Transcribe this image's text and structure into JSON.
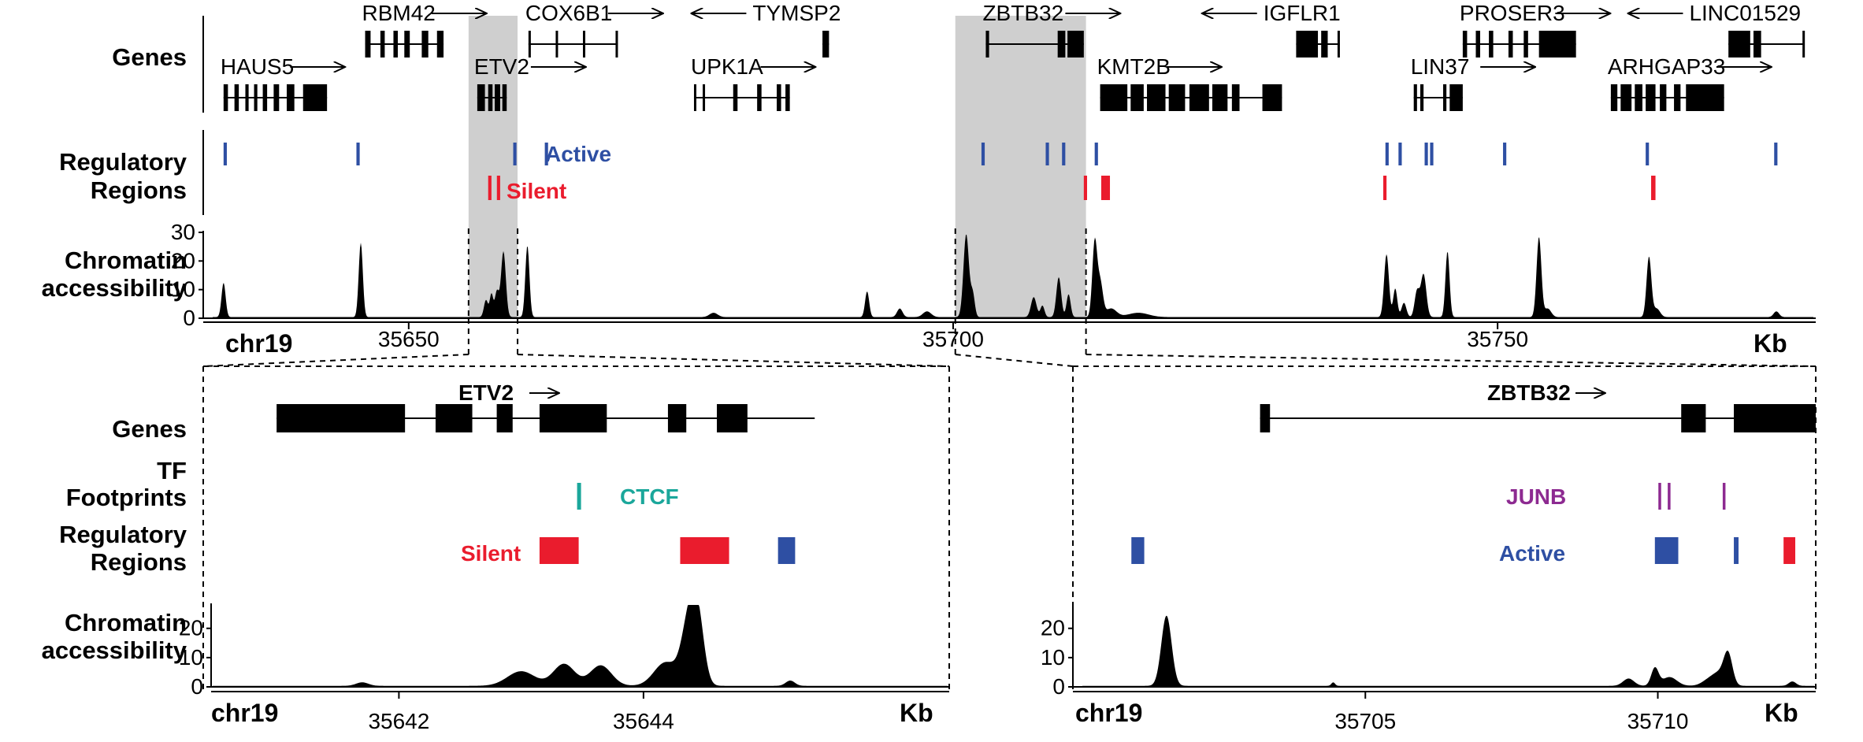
{
  "colors": {
    "active": "#2e4fa3",
    "silent": "#ea1c2d",
    "ctcf": "#1ba79b",
    "junb": "#8d2a91",
    "shade": "#cfcfcf",
    "black": "#000000"
  },
  "labels": {
    "genes": "Genes",
    "regulatory_1": "Regulatory",
    "regulatory_2": "Regions",
    "chromatin_1": "Chromatin",
    "chromatin_2": "accessibility",
    "tf_1": "TF",
    "tf_2": "Footprints",
    "chr": "chr19",
    "unit": "Kb",
    "active": "Active",
    "silent": "Silent",
    "ctcf": "CTCF",
    "junb": "JUNB"
  },
  "top": {
    "xrange_kb": [
      35632,
      35779
    ],
    "ticks": [
      {
        "kb": 35650,
        "label": "35650"
      },
      {
        "kb": 35700,
        "label": "35700"
      },
      {
        "kb": 35750,
        "label": "35750"
      }
    ],
    "yticks": [
      "0",
      "10",
      "20",
      "30"
    ],
    "ymax": 30,
    "shaded": [
      [
        35655.5,
        35660.0
      ],
      [
        35700.2,
        35712.2
      ]
    ],
    "genes": [
      {
        "name": "HAUS5",
        "row": 1,
        "start": 35633.0,
        "end": 35642.5,
        "exons": [
          [
            35633.0,
            35633.4
          ],
          [
            35634.0,
            35634.4
          ],
          [
            35635.0,
            35635.3
          ],
          [
            35635.8,
            35636.1
          ],
          [
            35636.6,
            35637.0
          ],
          [
            35637.6,
            35638.1
          ],
          [
            35638.8,
            35639.5
          ],
          [
            35640.3,
            35642.5
          ]
        ],
        "arrow": "right"
      },
      {
        "name": "RBM42",
        "row": 0,
        "start": 35646.0,
        "end": 35653.2,
        "exons": [
          [
            35646.0,
            35646.5
          ],
          [
            35647.4,
            35647.8
          ],
          [
            35648.6,
            35649.0
          ],
          [
            35649.6,
            35650.1
          ],
          [
            35651.2,
            35651.8
          ],
          [
            35652.6,
            35653.2
          ]
        ],
        "arrow": "right"
      },
      {
        "name": "ETV2",
        "row": 1,
        "start": 35656.3,
        "end": 35659.0,
        "exons": [
          [
            35656.3,
            35657.0
          ],
          [
            35657.3,
            35657.7
          ],
          [
            35657.9,
            35658.4
          ],
          [
            35658.6,
            35659.0
          ]
        ],
        "arrow": "right"
      },
      {
        "name": "COX6B1",
        "row": 0,
        "start": 35661.0,
        "end": 35669.2,
        "exons": [
          [
            35661.0,
            35661.2
          ],
          [
            35663.5,
            35663.7
          ],
          [
            35666.0,
            35666.2
          ],
          [
            35669.0,
            35669.2
          ]
        ],
        "arrow": "right"
      },
      {
        "name": "UPK1A",
        "row": 1,
        "start": 35676.2,
        "end": 35685.0,
        "exons": [
          [
            35676.2,
            35676.4
          ],
          [
            35677.0,
            35677.2
          ],
          [
            35679.8,
            35680.2
          ],
          [
            35682.0,
            35682.4
          ],
          [
            35683.8,
            35684.2
          ],
          [
            35684.6,
            35685.0
          ]
        ],
        "arrow": "right"
      },
      {
        "name": "TYMSP2",
        "row": 0,
        "start": 35688.0,
        "end": 35688.6,
        "exons": [
          [
            35688.0,
            35688.6
          ]
        ],
        "arrow": "left"
      },
      {
        "name": "ZBTB32",
        "row": 0,
        "start": 35703.0,
        "end": 35712.0,
        "exons": [
          [
            35703.0,
            35703.3
          ],
          [
            35709.6,
            35710.3
          ],
          [
            35710.5,
            35712.0
          ]
        ],
        "arrow": "right"
      },
      {
        "name": "KMT2B",
        "row": 1,
        "start": 35713.5,
        "end": 35730.2,
        "exons": [
          [
            35713.5,
            35716.0
          ],
          [
            35716.3,
            35717.5
          ],
          [
            35717.8,
            35719.5
          ],
          [
            35719.8,
            35721.3
          ],
          [
            35721.7,
            35723.5
          ],
          [
            35723.8,
            35725.2
          ],
          [
            35725.6,
            35726.3
          ],
          [
            35728.4,
            35730.2
          ]
        ],
        "arrow": "right"
      },
      {
        "name": "IGFLR1",
        "row": 0,
        "start": 35731.5,
        "end": 35735.5,
        "exons": [
          [
            35731.5,
            35733.5
          ],
          [
            35733.8,
            35734.4
          ],
          [
            35735.3,
            35735.5
          ]
        ],
        "arrow": "left"
      },
      {
        "name": "LIN37",
        "row": 1,
        "start": 35742.3,
        "end": 35746.8,
        "exons": [
          [
            35742.3,
            35742.6
          ],
          [
            35742.9,
            35743.2
          ],
          [
            35745.0,
            35745.3
          ],
          [
            35745.6,
            35746.8
          ]
        ],
        "arrow": "right"
      },
      {
        "name": "PROSER3",
        "row": 0,
        "start": 35746.8,
        "end": 35757.2,
        "exons": [
          [
            35746.8,
            35747.2
          ],
          [
            35748.0,
            35748.4
          ],
          [
            35749.2,
            35749.6
          ],
          [
            35751.0,
            35751.4
          ],
          [
            35752.4,
            35752.8
          ],
          [
            35753.8,
            35757.2
          ]
        ],
        "arrow": "right"
      },
      {
        "name": "ARHGAP33",
        "row": 1,
        "start": 35760.4,
        "end": 35770.8,
        "exons": [
          [
            35760.4,
            35761.0
          ],
          [
            35761.3,
            35762.3
          ],
          [
            35762.6,
            35763.3
          ],
          [
            35763.6,
            35764.5
          ],
          [
            35764.9,
            35765.5
          ],
          [
            35766.2,
            35766.8
          ],
          [
            35767.3,
            35770.8
          ]
        ],
        "arrow": "right"
      },
      {
        "name": "LINC01529",
        "row": 0,
        "start": 35771.2,
        "end": 35778.2,
        "exons": [
          [
            35771.2,
            35773.2
          ],
          [
            35773.5,
            35774.2
          ],
          [
            35778.0,
            35778.2
          ]
        ],
        "arrow": "left"
      }
    ],
    "active": [
      [
        35633.0,
        35633.3
      ],
      [
        35645.2,
        35645.5
      ],
      [
        35659.6,
        35659.9
      ],
      [
        35662.5,
        35662.8
      ],
      [
        35702.6,
        35702.9
      ],
      [
        35708.5,
        35708.8
      ],
      [
        35710.0,
        35710.3
      ],
      [
        35713.0,
        35713.3
      ],
      [
        35739.7,
        35740.0
      ],
      [
        35740.9,
        35741.2
      ],
      [
        35743.3,
        35743.6
      ],
      [
        35743.8,
        35744.1
      ],
      [
        35750.5,
        35750.8
      ],
      [
        35763.6,
        35763.9
      ],
      [
        35775.4,
        35775.7
      ]
    ],
    "silent": [
      [
        35657.3,
        35657.6
      ],
      [
        35658.1,
        35658.4
      ],
      [
        35712.0,
        35712.3
      ],
      [
        35713.6,
        35714.4
      ],
      [
        35739.5,
        35739.8
      ],
      [
        35764.1,
        35764.5
      ]
    ],
    "peaks": [
      [
        35633.0,
        12,
        0.3
      ],
      [
        35645.6,
        26,
        0.3
      ],
      [
        35657.1,
        6,
        0.3
      ],
      [
        35657.6,
        8,
        0.25
      ],
      [
        35658.1,
        9,
        0.3
      ],
      [
        35658.7,
        23,
        0.35
      ],
      [
        35660.9,
        25,
        0.3
      ],
      [
        35678.0,
        1.5,
        0.6
      ],
      [
        35692.1,
        9,
        0.3
      ],
      [
        35695.1,
        3,
        0.4
      ],
      [
        35697.6,
        2,
        0.6
      ],
      [
        35701.2,
        29,
        0.4
      ],
      [
        35701.8,
        8,
        0.3
      ],
      [
        35707.4,
        7,
        0.4
      ],
      [
        35708.2,
        4,
        0.3
      ],
      [
        35709.7,
        14,
        0.35
      ],
      [
        35710.6,
        8,
        0.3
      ],
      [
        35713.0,
        26,
        0.35
      ],
      [
        35713.5,
        12,
        0.4
      ],
      [
        35714.5,
        3,
        0.8
      ],
      [
        35717.0,
        1.5,
        1.5
      ],
      [
        35739.8,
        22,
        0.35
      ],
      [
        35740.6,
        10,
        0.3
      ],
      [
        35741.4,
        5,
        0.35
      ],
      [
        35742.6,
        9,
        0.35
      ],
      [
        35743.2,
        15,
        0.4
      ],
      [
        35745.4,
        23,
        0.3
      ],
      [
        35753.8,
        28,
        0.35
      ],
      [
        35754.6,
        3,
        0.5
      ],
      [
        35763.9,
        21,
        0.35
      ],
      [
        35764.6,
        3,
        0.5
      ],
      [
        35775.6,
        2,
        0.4
      ]
    ]
  },
  "zoom_left": {
    "xrange_kb": [
      35640.4,
      35646.5
    ],
    "ticks": [
      {
        "kb": 35642,
        "label": "35642"
      },
      {
        "kb": 35644,
        "label": "35644"
      }
    ],
    "yticks": [
      "0",
      "10",
      "20"
    ],
    "ymax": 28,
    "gene": {
      "name": "ETV2",
      "arrow": "right",
      "start": 35641.0,
      "end": 35645.4,
      "exons": [
        [
          35641.0,
          35642.05
        ],
        [
          35642.3,
          35642.6
        ],
        [
          35642.8,
          35642.93
        ],
        [
          35643.15,
          35643.7
        ],
        [
          35644.2,
          35644.35
        ],
        [
          35644.6,
          35644.85
        ]
      ]
    },
    "ctcf": [
      35643.47
    ],
    "silent": [
      [
        35643.15,
        35643.47
      ],
      [
        35644.3,
        35644.7
      ]
    ],
    "active": [
      [
        35645.1,
        35645.24
      ]
    ],
    "peaks": [
      [
        35641.7,
        1.2,
        0.08
      ],
      [
        35643.0,
        5,
        0.18
      ],
      [
        35643.35,
        7.5,
        0.14
      ],
      [
        35643.65,
        7,
        0.14
      ],
      [
        35644.18,
        8,
        0.15
      ],
      [
        35644.38,
        24,
        0.1
      ],
      [
        35644.45,
        16,
        0.08
      ],
      [
        35645.2,
        1.8,
        0.06
      ]
    ]
  },
  "zoom_right": {
    "xrange_kb": [
      35700.0,
      35712.7
    ],
    "ticks": [
      {
        "kb": 35705,
        "label": "35705"
      },
      {
        "kb": 35710,
        "label": "35710"
      }
    ],
    "yticks": [
      "0",
      "10",
      "20"
    ],
    "ymax": 28,
    "gene": {
      "name": "ZBTB32",
      "arrow": "right",
      "start": 35703.2,
      "end": 35712.7,
      "exons": [
        [
          35703.2,
          35703.37
        ],
        [
          35710.4,
          35710.82
        ],
        [
          35711.3,
          35712.7
        ]
      ]
    },
    "junb": [
      35710.03,
      35710.19,
      35711.13
    ],
    "active": [
      [
        35701.0,
        35701.22
      ],
      [
        35709.95,
        35710.35
      ],
      [
        35711.3,
        35711.38
      ]
    ],
    "silent": [
      [
        35712.15,
        35712.35
      ]
    ],
    "peaks": [
      [
        35701.6,
        24,
        0.14
      ],
      [
        35704.45,
        1.2,
        0.05
      ],
      [
        35709.5,
        2.5,
        0.15
      ],
      [
        35709.95,
        6,
        0.1
      ],
      [
        35710.2,
        3,
        0.2
      ],
      [
        35710.9,
        2.5,
        0.2
      ],
      [
        35711.2,
        11,
        0.12
      ],
      [
        35711.05,
        3,
        0.15
      ],
      [
        35712.3,
        1.5,
        0.1
      ]
    ]
  }
}
